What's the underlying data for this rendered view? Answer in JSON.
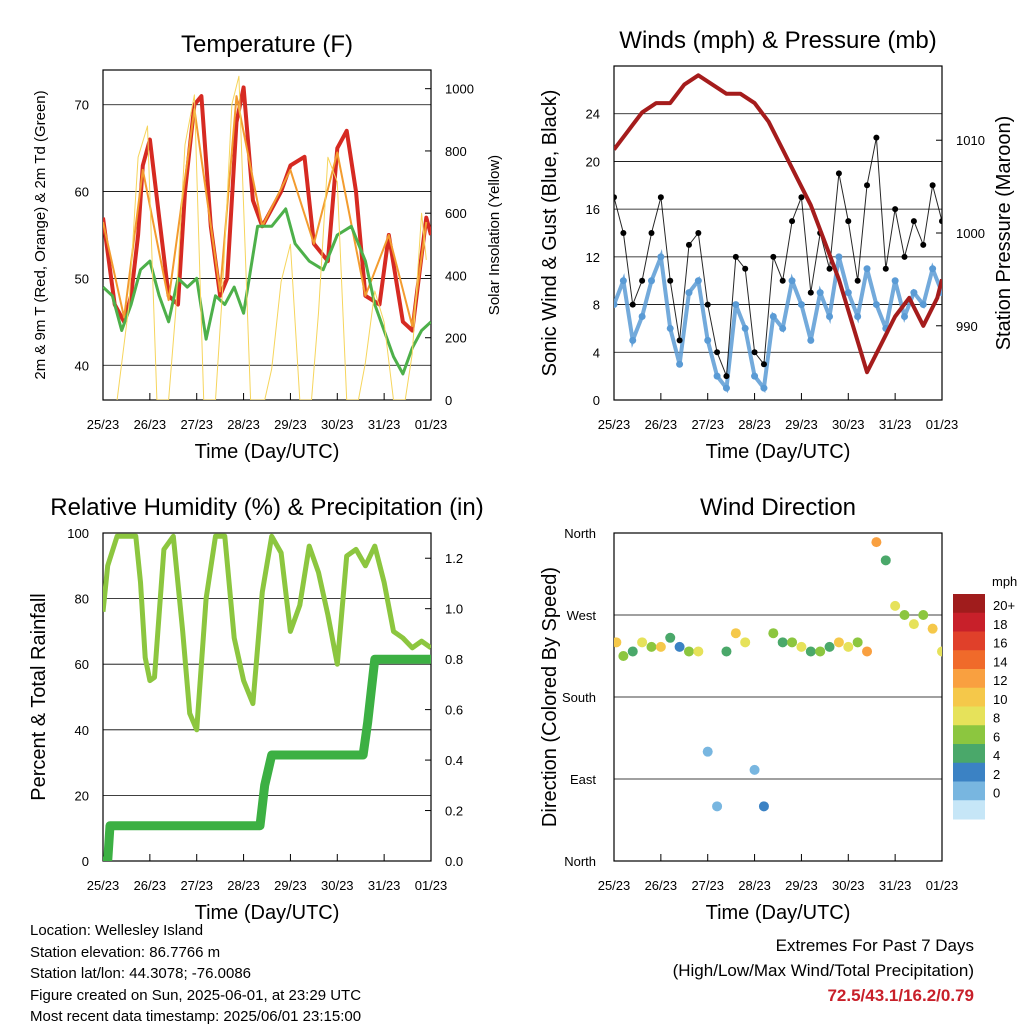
{
  "panels": {
    "temperature": {
      "title": "Temperature (F)",
      "ylabel_left": "2m & 9m T (Red, Orange) & 2m Td (Green)",
      "ylabel_right": "Solar Insolation (Yellow)",
      "xlabel": "Time (Day/UTC)"
    },
    "winds": {
      "title": "Winds (mph) & Pressure (mb)",
      "ylabel_left": "Sonic Wind & Gust (Blue, Black)",
      "ylabel_right": "Station Pressure (Maroon)",
      "xlabel": "Time (Day/UTC)"
    },
    "humidity": {
      "title": "Relative Humidity (%) & Precipitation (in)",
      "ylabel_left": "Percent & Total Rainfall",
      "xlabel": "Time (Day/UTC)"
    },
    "direction": {
      "title": "Wind Direction",
      "ylabel_left": "Direction (Colored By Speed)",
      "xlabel": "Time (Day/UTC)",
      "colorbar_title": "mph"
    }
  },
  "chart_data": [
    {
      "type": "line",
      "title": "Temperature (F)",
      "xlabel": "Time (Day/UTC)",
      "ylabel": "2m & 9m T (Red, Orange) & 2m Td (Green)",
      "ylabel_right": "Solar Insolation (Yellow)",
      "x_ticks": [
        "25/23",
        "26/23",
        "27/23",
        "28/23",
        "29/23",
        "30/23",
        "31/23",
        "01/23"
      ],
      "ylim": [
        36,
        74
      ],
      "y_ticks": [
        40,
        50,
        60,
        70
      ],
      "ylim_right": [
        0,
        1060
      ],
      "y_ticks_right": [
        0,
        200,
        400,
        600,
        800,
        1000
      ],
      "grid": "horizontal",
      "series": [
        {
          "name": "2m T",
          "color": "#d62a22",
          "x": [
            0,
            0.1,
            0.25,
            0.45,
            0.6,
            0.75,
            0.85,
            1.0,
            1.2,
            1.4,
            1.6,
            1.75,
            1.95,
            2.1,
            2.3,
            2.5,
            2.65,
            2.85,
            3.0,
            3.2,
            3.4,
            3.6,
            3.8,
            4.0,
            4.3,
            4.5,
            4.8,
            5.0,
            5.2,
            5.4,
            5.6,
            5.9,
            6.1,
            6.4,
            6.6,
            6.9,
            7.0
          ],
          "values": [
            57,
            53,
            47,
            45,
            48,
            55,
            63,
            66,
            57,
            48,
            47,
            60,
            70,
            71,
            56,
            48,
            50,
            68,
            72,
            59,
            56,
            58,
            60,
            63,
            64,
            54,
            52,
            65,
            67,
            60,
            48,
            47,
            55,
            45,
            44,
            57,
            55
          ]
        },
        {
          "name": "9m T",
          "color": "#f39c2f",
          "x": [
            0,
            0.45,
            0.85,
            1.4,
            1.95,
            2.5,
            2.85,
            3.4,
            4.0,
            4.5,
            5.0,
            5.6,
            6.1,
            6.6,
            6.9
          ],
          "values": [
            56.5,
            45.5,
            62.5,
            47.5,
            69.5,
            48.5,
            71,
            56,
            62.5,
            54,
            64.5,
            48,
            55,
            44.5,
            56.5
          ]
        },
        {
          "name": "2m Td",
          "color": "#4db04a",
          "x": [
            0,
            0.2,
            0.4,
            0.6,
            0.8,
            1.0,
            1.2,
            1.4,
            1.6,
            1.8,
            2.0,
            2.2,
            2.4,
            2.6,
            2.8,
            3.0,
            3.3,
            3.6,
            3.9,
            4.1,
            4.4,
            4.7,
            5.0,
            5.3,
            5.6,
            5.8,
            6.0,
            6.2,
            6.4,
            6.6,
            6.8,
            7.0
          ],
          "values": [
            49,
            48,
            44,
            47,
            51,
            52,
            48,
            45,
            50,
            49,
            50,
            43,
            48,
            47,
            49,
            46,
            56,
            56,
            58,
            54,
            52,
            51,
            55,
            56,
            52,
            47,
            44,
            41,
            39,
            42,
            44,
            45
          ]
        },
        {
          "name": "Solar Insolation",
          "color": "#f6d55c",
          "axis": "right",
          "x": [
            0.3,
            0.55,
            0.75,
            0.95,
            1.15,
            1.4,
            1.55,
            1.75,
            1.95,
            2.15,
            2.4,
            2.55,
            2.75,
            2.9,
            3.15,
            3.45,
            3.6,
            3.8,
            4.0,
            4.2,
            4.45,
            4.6,
            4.8,
            5.0,
            5.2,
            5.45,
            5.6,
            5.8,
            6.0,
            6.2,
            6.45,
            6.6,
            6.8,
            6.9
          ],
          "values": [
            0,
            300,
            780,
            880,
            0,
            0,
            280,
            820,
            980,
            0,
            0,
            350,
            950,
            1040,
            0,
            0,
            100,
            380,
            500,
            0,
            0,
            280,
            780,
            700,
            0,
            0,
            120,
            350,
            250,
            0,
            0,
            150,
            600,
            450
          ]
        }
      ]
    },
    {
      "type": "scatter",
      "title": "Winds (mph) & Pressure (mb)",
      "xlabel": "Time (Day/UTC)",
      "ylabel": "Sonic Wind & Gust (Blue, Black)",
      "ylabel_right": "Station Pressure (Maroon)",
      "x_ticks": [
        "25/23",
        "26/23",
        "27/23",
        "28/23",
        "29/23",
        "30/23",
        "31/23",
        "01/23"
      ],
      "ylim": [
        0,
        28
      ],
      "y_ticks": [
        0,
        4,
        8,
        12,
        16,
        20,
        24
      ],
      "ylim_right": [
        982,
        1018
      ],
      "y_ticks_right": [
        990,
        1000,
        1010
      ],
      "grid": "horizontal",
      "series": [
        {
          "name": "Sonic Wind",
          "color": "#5b9bd5",
          "x": [
            0,
            0.2,
            0.4,
            0.6,
            0.8,
            1.0,
            1.2,
            1.4,
            1.6,
            1.8,
            2.0,
            2.2,
            2.4,
            2.6,
            2.8,
            3.0,
            3.2,
            3.4,
            3.6,
            3.8,
            4.0,
            4.2,
            4.4,
            4.6,
            4.8,
            5.0,
            5.2,
            5.4,
            5.6,
            5.8,
            6.0,
            6.2,
            6.4,
            6.6,
            6.8,
            7.0
          ],
          "values": [
            8,
            10,
            5,
            7,
            10,
            12,
            6,
            3,
            9,
            10,
            5,
            2,
            1,
            8,
            6,
            2,
            1,
            7,
            6,
            10,
            8,
            5,
            9,
            7,
            12,
            9,
            7,
            11,
            8,
            6,
            10,
            7,
            9,
            8,
            11,
            9
          ]
        },
        {
          "name": "Gust",
          "color": "#000000",
          "x": [
            0,
            0.2,
            0.4,
            0.6,
            0.8,
            1.0,
            1.2,
            1.4,
            1.6,
            1.8,
            2.0,
            2.2,
            2.4,
            2.6,
            2.8,
            3.0,
            3.2,
            3.4,
            3.6,
            3.8,
            4.0,
            4.2,
            4.4,
            4.6,
            4.8,
            5.0,
            5.2,
            5.4,
            5.6,
            5.8,
            6.0,
            6.2,
            6.4,
            6.6,
            6.8,
            7.0
          ],
          "values": [
            17,
            14,
            8,
            10,
            14,
            17,
            10,
            5,
            13,
            14,
            8,
            4,
            2,
            12,
            11,
            4,
            3,
            12,
            10,
            15,
            17,
            9,
            14,
            11,
            19,
            15,
            10,
            18,
            22,
            11,
            16,
            12,
            15,
            13,
            18,
            15
          ]
        },
        {
          "name": "Station Pressure",
          "color": "#a51c1c",
          "axis": "right",
          "x": [
            0,
            0.3,
            0.6,
            0.9,
            1.2,
            1.5,
            1.8,
            2.1,
            2.4,
            2.7,
            3.0,
            3.3,
            3.6,
            3.9,
            4.2,
            4.5,
            4.8,
            5.1,
            5.4,
            5.7,
            6.0,
            6.3,
            6.6,
            6.9,
            7.0
          ],
          "values": [
            1009,
            1011,
            1013,
            1014,
            1014,
            1016,
            1017,
            1016,
            1015,
            1015,
            1014,
            1012,
            1009,
            1006,
            1003,
            999,
            995,
            990,
            985,
            988,
            991,
            993,
            990,
            993,
            995
          ]
        }
      ]
    },
    {
      "type": "line",
      "title": "Relative Humidity (%) & Precipitation (in)",
      "xlabel": "Time (Day/UTC)",
      "ylabel": "Percent & Total Rainfall",
      "x_ticks": [
        "25/23",
        "26/23",
        "27/23",
        "28/23",
        "29/23",
        "30/23",
        "31/23",
        "01/23"
      ],
      "ylim": [
        0,
        100
      ],
      "y_ticks": [
        0,
        20,
        40,
        60,
        80,
        100
      ],
      "ylim_right": [
        0,
        1.3
      ],
      "y_ticks_right": [
        0.0,
        0.2,
        0.4,
        0.6,
        0.8,
        1.0,
        1.2
      ],
      "grid": "horizontal",
      "series": [
        {
          "name": "Relative Humidity",
          "color": "#8cc63f",
          "x": [
            0,
            0.1,
            0.3,
            0.5,
            0.7,
            0.8,
            0.9,
            1.0,
            1.1,
            1.3,
            1.5,
            1.7,
            1.85,
            2.0,
            2.2,
            2.4,
            2.6,
            2.8,
            3.0,
            3.2,
            3.4,
            3.6,
            3.8,
            4.0,
            4.2,
            4.4,
            4.6,
            4.8,
            5.0,
            5.2,
            5.4,
            5.6,
            5.8,
            6.0,
            6.2,
            6.4,
            6.6,
            6.8,
            7.0
          ],
          "values": [
            76,
            90,
            99,
            99,
            99,
            85,
            62,
            55,
            56,
            95,
            99,
            70,
            45,
            40,
            80,
            99,
            99,
            68,
            55,
            48,
            82,
            99,
            94,
            70,
            78,
            96,
            88,
            75,
            60,
            93,
            95,
            90,
            96,
            85,
            70,
            68,
            65,
            67,
            65
          ]
        },
        {
          "name": "Total Precipitation",
          "color": "#3cb043",
          "axis": "right",
          "x": [
            0,
            0.1,
            0.15,
            3.35,
            3.45,
            3.6,
            5.55,
            5.65,
            5.8,
            7.0
          ],
          "values": [
            0,
            0,
            0.14,
            0.14,
            0.3,
            0.42,
            0.42,
            0.55,
            0.8,
            0.8
          ]
        }
      ]
    },
    {
      "type": "scatter",
      "title": "Wind Direction",
      "xlabel": "Time (Day/UTC)",
      "ylabel": "Direction (Colored By Speed)",
      "x_ticks": [
        "25/23",
        "26/23",
        "27/23",
        "28/23",
        "29/23",
        "30/23",
        "31/23",
        "01/23"
      ],
      "y_ticks": [
        "North",
        "East",
        "South",
        "West",
        "North"
      ],
      "ylim": [
        0,
        360
      ],
      "grid": "horizontal",
      "colorbar": {
        "title": "mph",
        "labels": [
          "20+",
          "18",
          "16",
          "14",
          "12",
          "10",
          "8",
          "6",
          "4",
          "2",
          "0"
        ],
        "colors": [
          "#a01c1c",
          "#c8202a",
          "#e0402a",
          "#f06a2a",
          "#f9a040",
          "#f5c84a",
          "#e6e25a",
          "#8cc63f",
          "#4aa86a",
          "#3b82c4",
          "#78b6e0",
          "#c6e6f7"
        ]
      },
      "series": [
        {
          "name": "Direction",
          "x": [
            0.05,
            0.2,
            0.4,
            0.6,
            0.8,
            1.0,
            1.2,
            1.4,
            1.6,
            1.8,
            2.0,
            2.2,
            2.4,
            2.6,
            2.8,
            3.0,
            3.2,
            3.4,
            3.6,
            3.8,
            4.0,
            4.2,
            4.4,
            4.6,
            4.8,
            5.0,
            5.2,
            5.4,
            5.6,
            5.8,
            6.0,
            6.2,
            6.4,
            6.6,
            6.8,
            7.0
          ],
          "values": [
            240,
            225,
            230,
            240,
            235,
            235,
            245,
            235,
            230,
            230,
            120,
            60,
            230,
            250,
            240,
            100,
            60,
            250,
            240,
            240,
            235,
            230,
            230,
            235,
            240,
            235,
            240,
            230,
            350,
            330,
            280,
            270,
            260,
            270,
            255,
            230
          ],
          "speeds": [
            12,
            8,
            6,
            10,
            8,
            12,
            6,
            4,
            8,
            10,
            2,
            2,
            6,
            12,
            10,
            2,
            4,
            8,
            6,
            8,
            10,
            6,
            8,
            6,
            12,
            10,
            8,
            14,
            14,
            6,
            10,
            8,
            10,
            8,
            12,
            10
          ]
        }
      ]
    }
  ],
  "info": {
    "location": "Location: Wellesley Island",
    "elevation": "Station elevation: 86.7766 m",
    "latlon": "Station lat/lon: 44.3078; -76.0086",
    "created": "Figure created on Sun, 2025-06-01, at 23:29 UTC",
    "latest": "Most recent data timestamp: 2025/06/01 23:15:00"
  },
  "extremes": {
    "title": "Extremes For Past 7 Days",
    "subtitle": "(High/Low/Max Wind/Total Precipitation)",
    "values": "72.5/43.1/16.2/0.79"
  }
}
